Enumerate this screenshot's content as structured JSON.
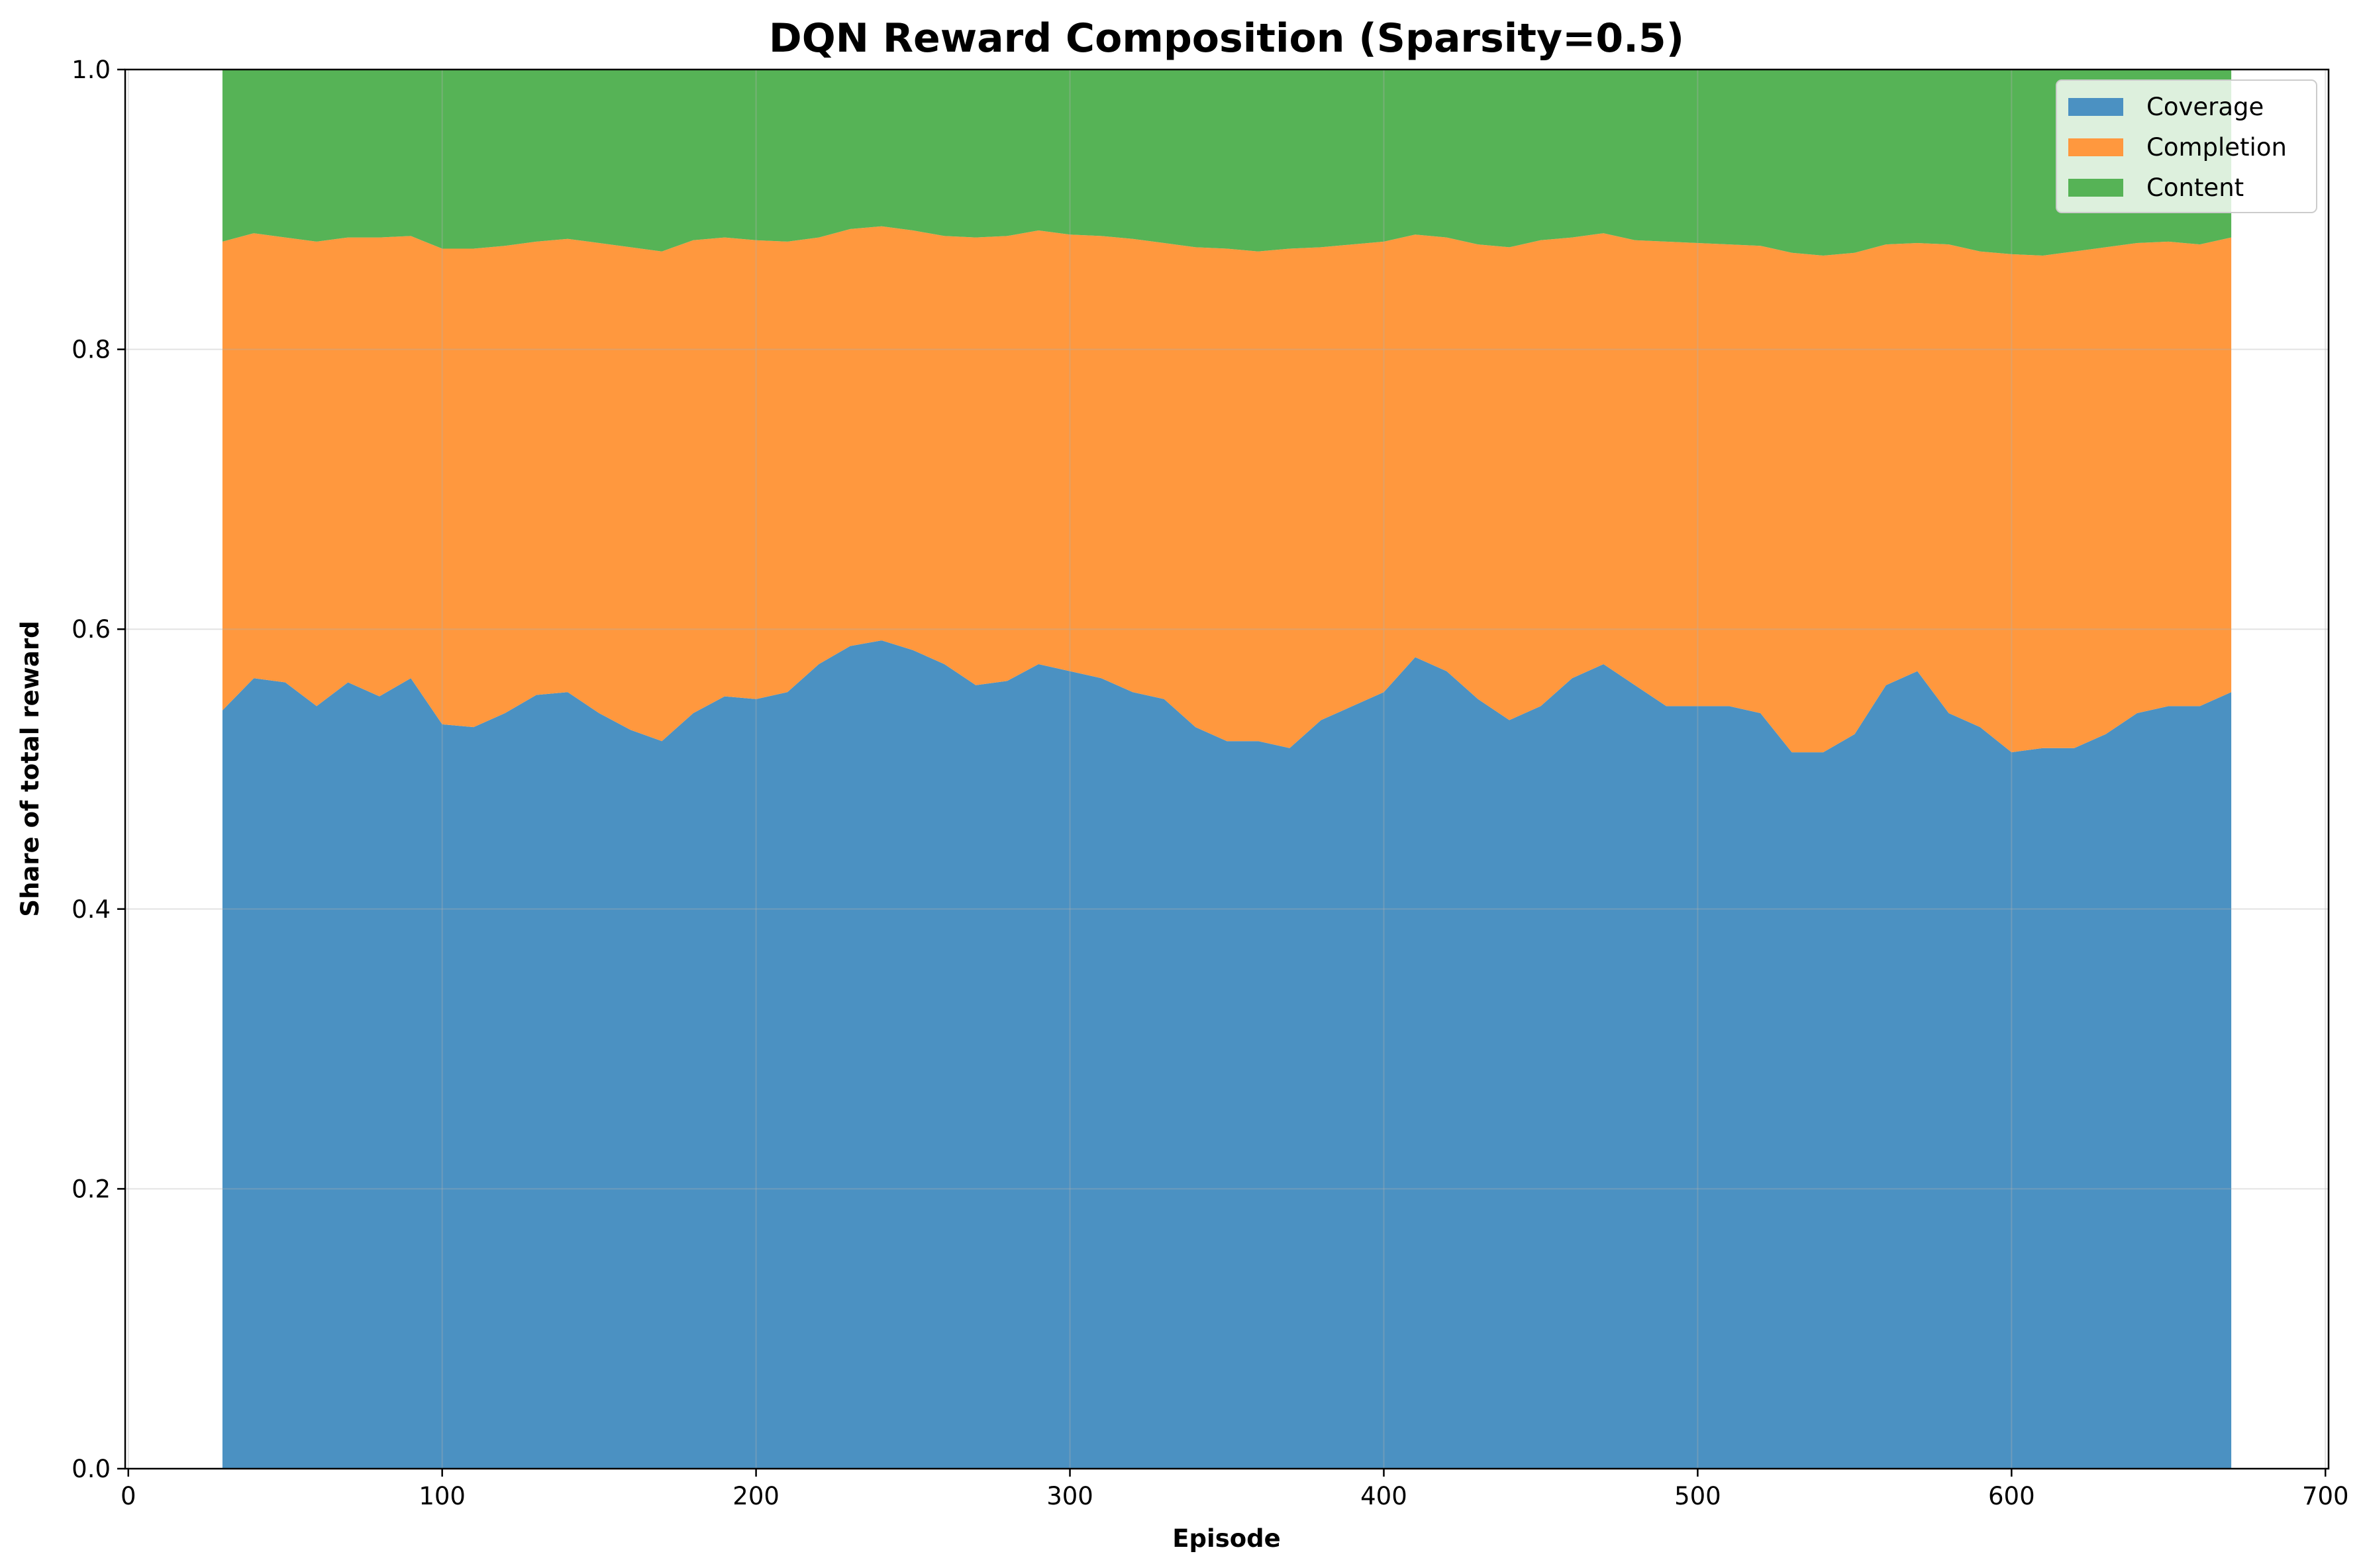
{
  "chart_data": {
    "type": "area",
    "stacked": true,
    "title": "DQN Reward Composition (Sparsity=0.5)",
    "xlabel": "Episode",
    "ylabel": "Share of total reward",
    "xlim": [
      -1,
      701
    ],
    "ylim": [
      0,
      1
    ],
    "xticks": [
      0,
      100,
      200,
      300,
      400,
      500,
      600,
      700
    ],
    "yticks": [
      0.0,
      0.2,
      0.4,
      0.6,
      0.8,
      1.0
    ],
    "ytick_labels": [
      "0.0",
      "0.2",
      "0.4",
      "0.6",
      "0.8",
      "1.0"
    ],
    "grid": true,
    "legend_position": "top-right",
    "x": [
      30,
      40,
      50,
      60,
      70,
      80,
      90,
      100,
      110,
      120,
      130,
      140,
      150,
      160,
      170,
      180,
      190,
      200,
      210,
      220,
      230,
      240,
      250,
      260,
      270,
      280,
      290,
      300,
      310,
      320,
      330,
      340,
      350,
      360,
      370,
      380,
      390,
      400,
      410,
      420,
      430,
      440,
      450,
      460,
      470,
      480,
      490,
      500,
      510,
      520,
      530,
      540,
      550,
      560,
      570,
      580,
      590,
      600,
      610,
      620,
      630,
      640,
      650,
      660,
      670
    ],
    "series": [
      {
        "name": "Coverage",
        "color": "#4b91c2",
        "values": [
          0.542,
          0.565,
          0.562,
          0.545,
          0.562,
          0.552,
          0.565,
          0.532,
          0.53,
          0.54,
          0.553,
          0.555,
          0.54,
          0.528,
          0.52,
          0.54,
          0.552,
          0.55,
          0.555,
          0.575,
          0.588,
          0.592,
          0.585,
          0.575,
          0.56,
          0.563,
          0.575,
          0.57,
          0.565,
          0.555,
          0.55,
          0.53,
          0.52,
          0.52,
          0.515,
          0.535,
          0.545,
          0.555,
          0.58,
          0.57,
          0.55,
          0.535,
          0.545,
          0.565,
          0.575,
          0.56,
          0.545,
          0.545,
          0.545,
          0.54,
          0.512,
          0.512,
          0.525,
          0.56,
          0.57,
          0.54,
          0.53,
          0.512,
          0.515,
          0.515,
          0.525,
          0.54,
          0.545,
          0.545,
          0.555
        ]
      },
      {
        "name": "Completion",
        "color": "#ff983e",
        "values": [
          0.335,
          0.318,
          0.318,
          0.332,
          0.318,
          0.328,
          0.316,
          0.34,
          0.342,
          0.334,
          0.324,
          0.324,
          0.336,
          0.345,
          0.35,
          0.338,
          0.328,
          0.328,
          0.322,
          0.305,
          0.298,
          0.296,
          0.3,
          0.306,
          0.32,
          0.318,
          0.31,
          0.312,
          0.316,
          0.324,
          0.326,
          0.343,
          0.352,
          0.35,
          0.357,
          0.338,
          0.33,
          0.322,
          0.302,
          0.31,
          0.325,
          0.338,
          0.333,
          0.315,
          0.308,
          0.318,
          0.332,
          0.331,
          0.33,
          0.334,
          0.357,
          0.355,
          0.344,
          0.315,
          0.306,
          0.335,
          0.34,
          0.356,
          0.352,
          0.355,
          0.348,
          0.336,
          0.332,
          0.33,
          0.325
        ]
      },
      {
        "name": "Content",
        "color": "#56b356",
        "values": [
          0.123,
          0.117,
          0.12,
          0.123,
          0.12,
          0.12,
          0.119,
          0.128,
          0.128,
          0.126,
          0.123,
          0.121,
          0.124,
          0.127,
          0.13,
          0.122,
          0.12,
          0.122,
          0.123,
          0.12,
          0.114,
          0.112,
          0.115,
          0.119,
          0.12,
          0.119,
          0.115,
          0.118,
          0.119,
          0.121,
          0.124,
          0.127,
          0.128,
          0.13,
          0.128,
          0.127,
          0.125,
          0.123,
          0.118,
          0.12,
          0.125,
          0.127,
          0.122,
          0.12,
          0.117,
          0.122,
          0.123,
          0.124,
          0.125,
          0.126,
          0.131,
          0.133,
          0.131,
          0.125,
          0.124,
          0.125,
          0.13,
          0.132,
          0.133,
          0.13,
          0.127,
          0.124,
          0.123,
          0.125,
          0.12
        ]
      }
    ]
  }
}
